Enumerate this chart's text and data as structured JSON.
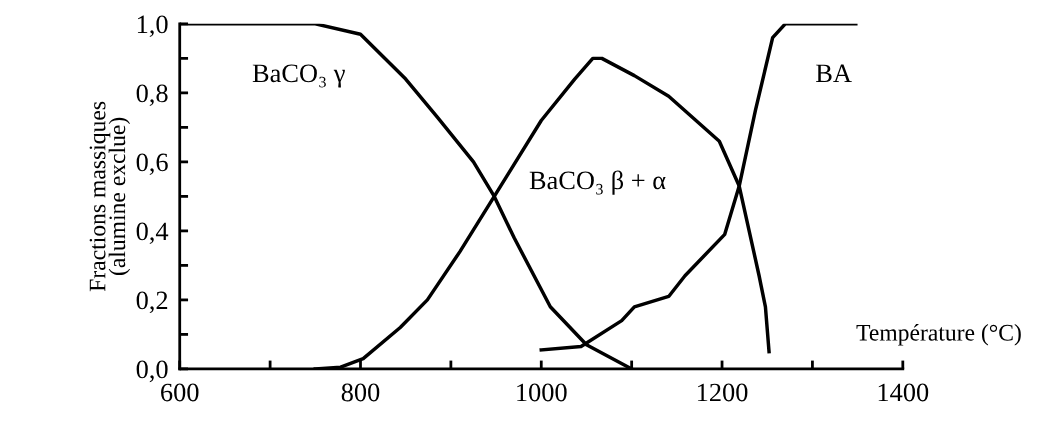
{
  "chart_data": {
    "type": "line",
    "xlabel": "Température (°C)",
    "ylabel": "Fractions massiques\n(alumine exclue)",
    "xlim": [
      600,
      1400
    ],
    "ylim": [
      0,
      1
    ],
    "xticks": [
      600,
      {
        "value": 700,
        "label": null
      },
      800,
      {
        "value": 900,
        "label": null
      },
      1000,
      {
        "value": 1100,
        "label": null
      },
      1200,
      {
        "value": 1300,
        "label": null
      },
      1400
    ],
    "yticks": [
      {
        "value": 0,
        "label": "0,0"
      },
      {
        "value": 0.1,
        "label": null
      },
      {
        "value": 0.2,
        "label": "0,2"
      },
      {
        "value": 0.3,
        "label": null
      },
      {
        "value": 0.4,
        "label": "0,4"
      },
      {
        "value": 0.5,
        "label": null
      },
      {
        "value": 0.6,
        "label": "0,6"
      },
      {
        "value": 0.7,
        "label": null
      },
      {
        "value": 0.8,
        "label": "0,8"
      },
      {
        "value": 0.9,
        "label": null
      },
      {
        "value": 1,
        "label": "1,0"
      }
    ],
    "grid": false,
    "legend": false,
    "marker": "none",
    "line_style": "solid",
    "series": [
      {
        "name": "BaCO₃ γ",
        "color": "#000000",
        "x": [
          600,
          750,
          800,
          850,
          885,
          925,
          948,
          970,
          1000,
          1010,
          1050,
          1100
        ],
        "values": [
          1.0,
          1.0,
          0.97,
          0.84,
          0.73,
          0.6,
          0.5,
          0.38,
          0.23,
          0.18,
          0.07,
          0.0
        ]
      },
      {
        "name": "BaCO₃ β + α",
        "color": "#000000",
        "x": [
          750,
          778,
          803,
          844,
          874,
          910,
          948,
          1000,
          1037,
          1057,
          1067,
          1103,
          1141,
          1197,
          1219,
          1241,
          1248,
          1252
        ],
        "values": [
          0.0,
          0.005,
          0.03,
          0.12,
          0.2,
          0.34,
          0.5,
          0.72,
          0.84,
          0.9,
          0.9,
          0.85,
          0.79,
          0.66,
          0.53,
          0.27,
          0.18,
          0.05
        ]
      },
      {
        "name": "BA",
        "color": "#000000",
        "x": [
          1000,
          1044,
          1089,
          1103,
          1141,
          1159,
          1203,
          1219,
          1237,
          1256,
          1270,
          1348
        ],
        "values": [
          0.055,
          0.065,
          0.14,
          0.18,
          0.21,
          0.27,
          0.39,
          0.53,
          0.75,
          0.96,
          1.0,
          1.0
        ]
      }
    ]
  }
}
